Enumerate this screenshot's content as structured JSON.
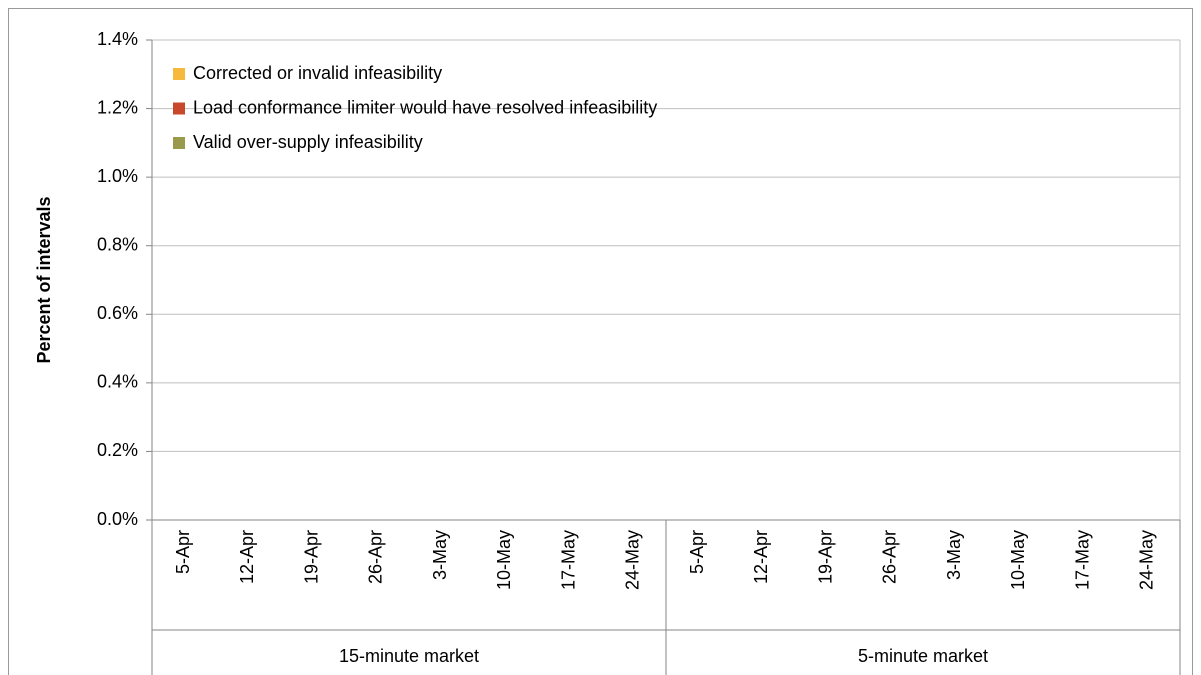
{
  "chart_data": {
    "type": "bar",
    "stacked": true,
    "ylabel": "Percent of intervals",
    "categories": [
      "5-Apr",
      "12-Apr",
      "19-Apr",
      "26-Apr",
      "3-May",
      "10-May",
      "17-May",
      "24-May",
      "5-Apr",
      "12-Apr",
      "19-Apr",
      "26-Apr",
      "3-May",
      "10-May",
      "17-May",
      "24-May"
    ],
    "groups": [
      "15-minute market",
      "5-minute market"
    ],
    "series": [
      {
        "name": "Corrected or invalid infeasibility",
        "color": "#f6b93b",
        "values": [
          0,
          0,
          0,
          0,
          0,
          0,
          0,
          0,
          0,
          0,
          0,
          0,
          0,
          0,
          0,
          0
        ]
      },
      {
        "name": "Load conformance limiter would have resolved infeasibility",
        "color": "#c9472a",
        "values": [
          0,
          0,
          0,
          0,
          0,
          0,
          0,
          0,
          0,
          0,
          0,
          0,
          0,
          0,
          0,
          0
        ]
      },
      {
        "name": "Valid over-supply infeasibility",
        "color": "#999a4b",
        "values": [
          0,
          0,
          0,
          0,
          0,
          0,
          0,
          0,
          0,
          0,
          0,
          0,
          0,
          0,
          0,
          0
        ]
      }
    ],
    "ylim": [
      0,
      1.4
    ],
    "yticks": [
      {
        "value": 0,
        "label": "0.0%"
      },
      {
        "value": 0.2,
        "label": "0.2%"
      },
      {
        "value": 0.4,
        "label": "0.4%"
      },
      {
        "value": 0.6,
        "label": "0.6%"
      },
      {
        "value": 0.8,
        "label": "0.8%"
      },
      {
        "value": 1.0,
        "label": "1.0%"
      },
      {
        "value": 1.2,
        "label": "1.2%"
      },
      {
        "value": 1.4,
        "label": "1.4%"
      }
    ],
    "grid": true,
    "legend": "upper left"
  }
}
